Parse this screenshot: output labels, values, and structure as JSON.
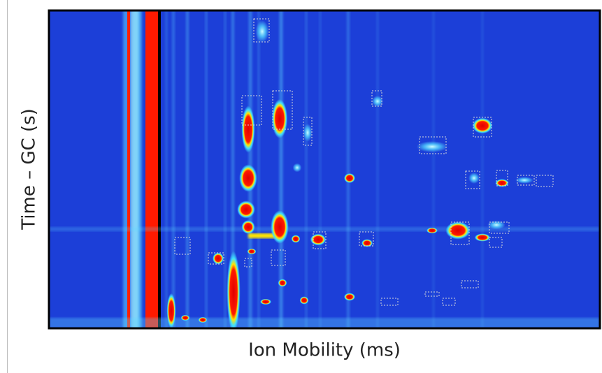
{
  "chart_data": {
    "type": "heatmap",
    "x_label": "Ion Mobility (ms)",
    "y_label": "Time – GC (s)"
  }
}
